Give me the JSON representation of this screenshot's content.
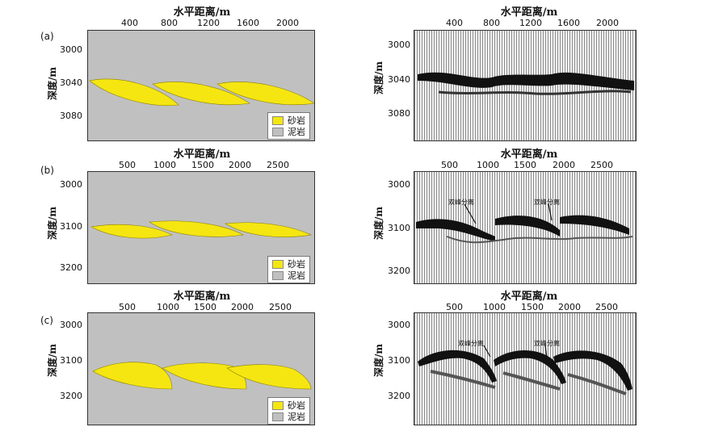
{
  "colors": {
    "sand": "#f5e612",
    "shale": "#c0c0c0",
    "event": "#111111"
  },
  "panels": [
    {
      "letter": "(a)",
      "xlabel": "水平距离/m",
      "ylabel": "深度/m",
      "xticks": [
        "400",
        "800",
        "1200",
        "1600",
        "2000"
      ],
      "yticks": [
        "3000",
        "3040",
        "3080"
      ],
      "legend": {
        "sand": "砂岩",
        "shale": "泥岩"
      },
      "annotation": ""
    },
    {
      "letter": "(b)",
      "xlabel": "水平距离/m",
      "ylabel": "深度/m",
      "xticks": [
        "500",
        "1000",
        "1500",
        "2000",
        "2500"
      ],
      "yticks": [
        "3000",
        "3100",
        "3200"
      ],
      "legend": {
        "sand": "砂岩",
        "shale": "泥岩"
      },
      "annotation": "双峰分离"
    },
    {
      "letter": "(c)",
      "xlabel": "水平距离/m",
      "ylabel": "深度/m",
      "xticks": [
        "500",
        "1000",
        "1500",
        "2000",
        "2500"
      ],
      "yticks": [
        "3000",
        "3100",
        "3200"
      ],
      "legend": {
        "sand": "砂岩",
        "shale": "泥岩"
      },
      "annotation": "双峰分离"
    }
  ]
}
